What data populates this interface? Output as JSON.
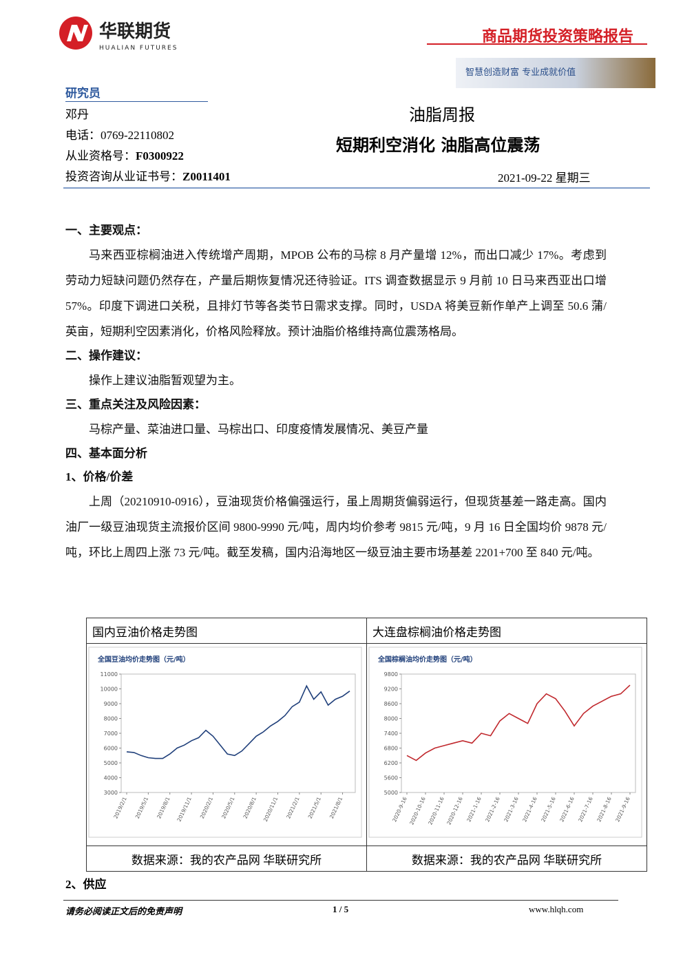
{
  "header": {
    "company": "华联期货",
    "company_en": "HUALIAN FUTURES",
    "report_type": "商品期货投资策略报告",
    "slogan": "智慧创造财富 专业成就价值"
  },
  "analyst": {
    "heading": "研究员",
    "name": "邓丹",
    "phone": "电话：0769-22110802",
    "license_label": "从业资格号：",
    "license": "F0300922",
    "advisor_label": "投资咨询从业证书号：",
    "advisor": "Z0011401"
  },
  "report": {
    "title": "油脂周报",
    "subtitle": "短期利空消化 油脂高位震荡",
    "date": "2021-09-22 星期三"
  },
  "sections": [
    {
      "heading": "一、主要观点：",
      "paragraphs": [
        "马来西亚棕榈油进入传统增产周期，MPOB 公布的马棕 8 月产量增 12%，而出口减少 17%。考虑到劳动力短缺问题仍然存在，产量后期恢复情况还待验证。ITS 调查数据显示 9 月前 10 日马来西亚出口增 57%。印度下调进口关税，且排灯节等各类节日需求支撑。同时，USDA 将美豆新作单产上调至 50.6 蒲/英亩，短期利空因素消化，价格风险释放。预计油脂价格维持高位震荡格局。"
      ]
    },
    {
      "heading": "二、操作建议：",
      "paragraphs": [
        "操作上建议油脂暂观望为主。"
      ]
    },
    {
      "heading": "三、重点关注及风险因素：",
      "paragraphs": [
        "马棕产量、菜油进口量、马棕出口、印度疫情发展情况、美豆产量"
      ]
    },
    {
      "heading": "四、基本面分析",
      "paragraphs": []
    },
    {
      "heading": "1、价格/价差",
      "paragraphs": [
        "上周（20210910-0916），豆油现货价格偏强运行，虽上周期货偏弱运行，但现货基差一路走高。国内油厂一级豆油现货主流报价区间 9800-9990 元/吨，周内均价参考 9815 元/吨，9 月 16 日全国均价 9878 元/吨，环比上周四上涨 73 元/吨。截至发稿，国内沿海地区一级豆油主要市场基差 2201+700 至 840 元/吨。"
      ]
    }
  ],
  "figures": [
    {
      "caption": "国内豆油价格走势图",
      "source": "数据来源：我的农产品网 华联研究所",
      "chart": {
        "type": "line",
        "title": "全国豆油均价走势图（元/吨）",
        "color": "#1f3f7a",
        "categories": [
          "2019/2/1",
          null,
          null,
          "2019/5/1",
          null,
          null,
          "2019/8/1",
          null,
          null,
          "2019/11/1",
          null,
          null,
          "2020/2/1",
          null,
          null,
          "2020/5/1",
          null,
          null,
          "2020/8/1",
          null,
          null,
          "2020/11/1",
          null,
          null,
          "2021/2/1",
          null,
          null,
          "2021/5/1",
          null,
          null,
          "2021/8/1",
          null
        ],
        "values": [
          5750,
          5700,
          5500,
          5350,
          5300,
          5300,
          5600,
          6000,
          6200,
          6500,
          6700,
          7200,
          6800,
          6200,
          5600,
          5500,
          5800,
          6300,
          6800,
          7100,
          7500,
          7800,
          8200,
          8800,
          9100,
          10200,
          9300,
          9800,
          8900,
          9300,
          9500,
          9850
        ],
        "ylim": [
          3000,
          11000
        ],
        "yticks": [
          3000,
          4000,
          5000,
          6000,
          7000,
          8000,
          9000,
          10000,
          11000
        ]
      }
    },
    {
      "caption": "大连盘棕榈油价格走势图",
      "source": "数据来源：我的农产品网 华联研究所",
      "chart": {
        "type": "line",
        "title": "全国棕榈油均价走势图（元/吨）",
        "color": "#c0282d",
        "categories": [
          "2020-9-16",
          null,
          "2020-10-16",
          null,
          "2020-11-16",
          null,
          "2020-12-16",
          null,
          "2021-1-16",
          null,
          "2021-2-16",
          null,
          "2021-3-16",
          null,
          "2021-4-16",
          null,
          "2021-5-16",
          null,
          "2021-6-16",
          null,
          "2021-7-16",
          null,
          "2021-8-16",
          null,
          "2021-9-16"
        ],
        "values": [
          6500,
          6300,
          6600,
          6800,
          6900,
          7000,
          7100,
          7000,
          7400,
          7300,
          7900,
          8200,
          8000,
          7800,
          8600,
          9000,
          8800,
          8300,
          7700,
          8200,
          8500,
          8700,
          8900,
          9000,
          9350
        ],
        "ylim": [
          5000,
          9800
        ],
        "yticks": [
          5000,
          5600,
          6200,
          6800,
          7400,
          8000,
          8600,
          9200,
          9800
        ]
      }
    }
  ],
  "after_heading": "2、供应",
  "footer": {
    "disclaimer": "请务必阅读正文后的免责声明",
    "page": "1 / 5",
    "url": "www.hlqh.com"
  }
}
